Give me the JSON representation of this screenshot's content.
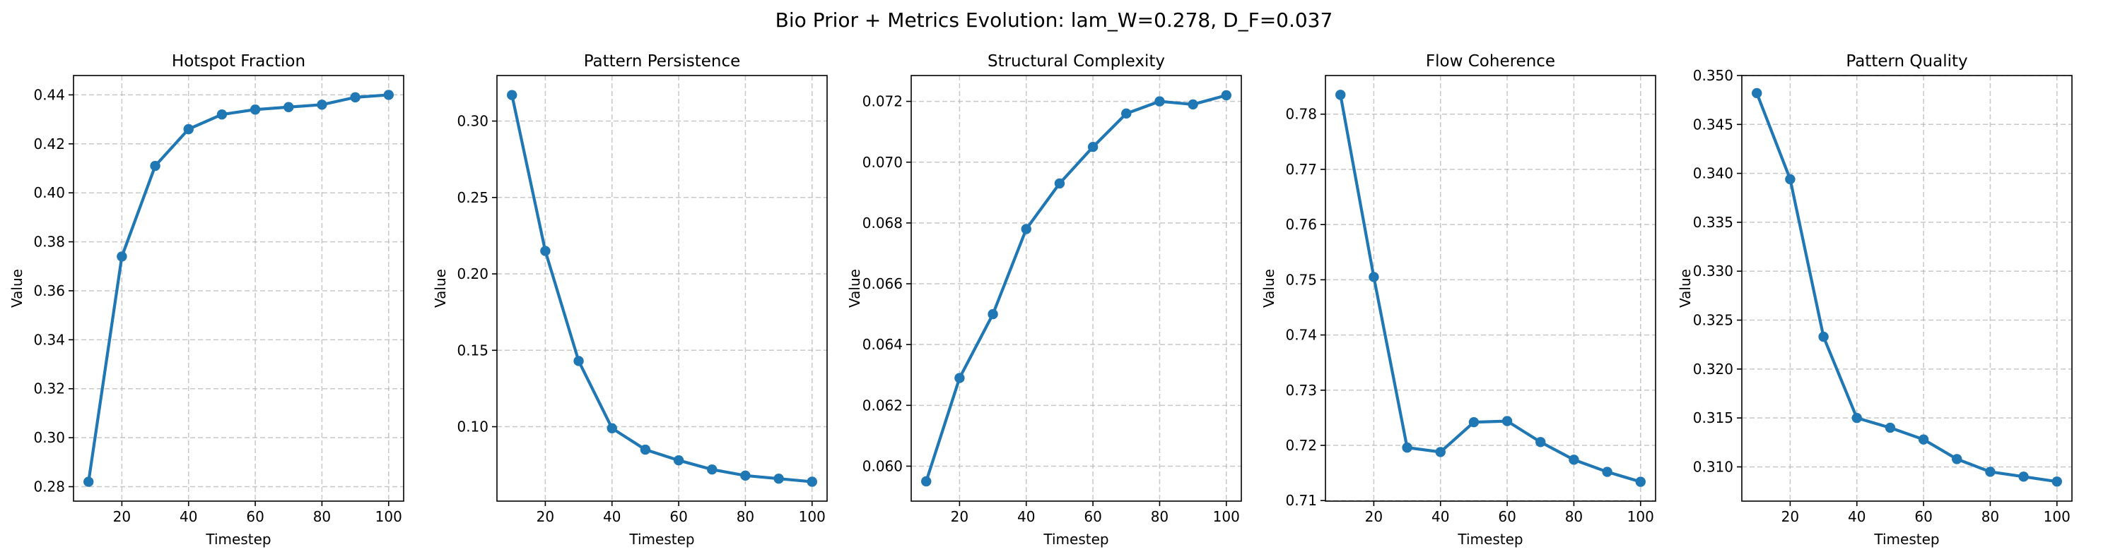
{
  "figure": {
    "suptitle": "Bio Prior + Metrics Evolution: lam_W=0.278, D_F=0.037",
    "line_color": "#1f77b4"
  },
  "chart_data": [
    {
      "type": "line",
      "title": "Hotspot Fraction",
      "xlabel": "Timestep",
      "ylabel": "Value",
      "x": [
        10,
        20,
        30,
        40,
        50,
        60,
        70,
        80,
        90,
        100
      ],
      "values": [
        0.282,
        0.374,
        0.411,
        0.426,
        0.432,
        0.434,
        0.435,
        0.436,
        0.439,
        0.44
      ],
      "xlim": [
        5.5,
        104.5
      ],
      "ylim": [
        0.2741,
        0.4479
      ],
      "xticks": [
        20,
        40,
        60,
        80,
        100
      ],
      "yticks": [
        0.28,
        0.3,
        0.32,
        0.34,
        0.36,
        0.38,
        0.4,
        0.42,
        0.44
      ],
      "ytick_labels": [
        "0.28",
        "0.30",
        "0.32",
        "0.34",
        "0.36",
        "0.38",
        "0.40",
        "0.42",
        "0.44"
      ],
      "grid": true,
      "marker": "circle"
    },
    {
      "type": "line",
      "title": "Pattern Persistence",
      "xlabel": "Timestep",
      "ylabel": "Value",
      "x": [
        10,
        20,
        30,
        40,
        50,
        60,
        70,
        80,
        90,
        100
      ],
      "values": [
        0.317,
        0.215,
        0.143,
        0.099,
        0.085,
        0.078,
        0.072,
        0.068,
        0.066,
        0.064
      ],
      "xlim": [
        5.5,
        104.5
      ],
      "ylim": [
        0.0513,
        0.3298
      ],
      "xticks": [
        20,
        40,
        60,
        80,
        100
      ],
      "yticks": [
        0.1,
        0.15,
        0.2,
        0.25,
        0.3
      ],
      "ytick_labels": [
        "0.10",
        "0.15",
        "0.20",
        "0.25",
        "0.30"
      ],
      "grid": true,
      "marker": "circle"
    },
    {
      "type": "line",
      "title": "Structural Complexity",
      "xlabel": "Timestep",
      "ylabel": "Value",
      "x": [
        10,
        20,
        30,
        40,
        50,
        60,
        70,
        80,
        90,
        100
      ],
      "values": [
        0.0595,
        0.0629,
        0.065,
        0.0678,
        0.0693,
        0.0705,
        0.0716,
        0.072,
        0.0719,
        0.0722
      ],
      "xlim": [
        5.5,
        104.5
      ],
      "ylim": [
        0.05885,
        0.07285
      ],
      "xticks": [
        20,
        40,
        60,
        80,
        100
      ],
      "yticks": [
        0.06,
        0.062,
        0.064,
        0.066,
        0.068,
        0.07,
        0.072
      ],
      "ytick_labels": [
        "0.060",
        "0.062",
        "0.064",
        "0.066",
        "0.068",
        "0.070",
        "0.072"
      ],
      "grid": true,
      "marker": "circle"
    },
    {
      "type": "line",
      "title": "Flow Coherence",
      "xlabel": "Timestep",
      "ylabel": "Value",
      "x": [
        10,
        20,
        30,
        40,
        50,
        60,
        70,
        80,
        90,
        100
      ],
      "values": [
        0.7835,
        0.7505,
        0.7196,
        0.7188,
        0.7242,
        0.7244,
        0.7206,
        0.7174,
        0.7152,
        0.7134
      ],
      "xlim": [
        5.5,
        104.5
      ],
      "ylim": [
        0.7099,
        0.787
      ],
      "xticks": [
        20,
        40,
        60,
        80,
        100
      ],
      "yticks": [
        0.71,
        0.72,
        0.73,
        0.74,
        0.75,
        0.76,
        0.77,
        0.78
      ],
      "ytick_labels": [
        "0.71",
        "0.72",
        "0.73",
        "0.74",
        "0.75",
        "0.76",
        "0.77",
        "0.78"
      ],
      "grid": true,
      "marker": "circle"
    },
    {
      "type": "line",
      "title": "Pattern Quality",
      "xlabel": "Timestep",
      "ylabel": "Value",
      "x": [
        10,
        20,
        30,
        40,
        50,
        60,
        70,
        80,
        90,
        100
      ],
      "values": [
        0.3482,
        0.3394,
        0.3233,
        0.315,
        0.314,
        0.3128,
        0.3108,
        0.3095,
        0.309,
        0.3085
      ],
      "xlim": [
        5.5,
        104.5
      ],
      "ylim": [
        0.3065,
        0.35
      ],
      "xticks": [
        20,
        40,
        60,
        80,
        100
      ],
      "yticks": [
        0.31,
        0.315,
        0.32,
        0.325,
        0.33,
        0.335,
        0.34,
        0.345,
        0.35
      ],
      "ytick_labels": [
        "0.310",
        "0.315",
        "0.320",
        "0.325",
        "0.330",
        "0.335",
        "0.340",
        "0.345",
        "0.350"
      ],
      "grid": true,
      "marker": "circle"
    }
  ]
}
